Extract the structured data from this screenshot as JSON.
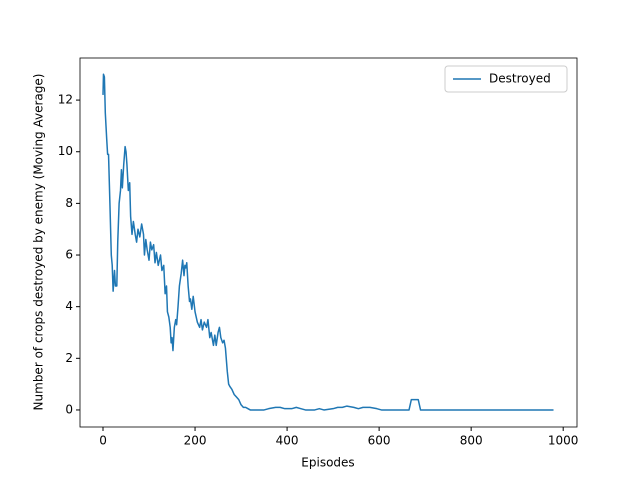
{
  "chart_data": {
    "type": "line",
    "xlabel": "Episodes",
    "ylabel": "Number of crops destroyed by enemy (Moving Average)",
    "x": [
      0,
      1,
      3,
      4,
      5,
      8,
      10,
      12,
      15,
      18,
      20,
      22,
      25,
      27,
      30,
      32,
      35,
      38,
      40,
      42,
      45,
      48,
      50,
      52,
      55,
      58,
      60,
      63,
      66,
      70,
      73,
      76,
      80,
      84,
      88,
      90,
      93,
      96,
      100,
      103,
      106,
      110,
      113,
      116,
      120,
      125,
      128,
      132,
      135,
      138,
      140,
      143,
      146,
      148,
      150,
      152,
      155,
      158,
      160,
      163,
      166,
      170,
      173,
      176,
      178,
      180,
      182,
      185,
      188,
      190,
      193,
      196,
      200,
      205,
      210,
      213,
      216,
      220,
      225,
      228,
      232,
      235,
      240,
      243,
      246,
      250,
      253,
      256,
      260,
      263,
      266,
      270,
      273,
      276,
      280,
      285,
      290,
      295,
      300,
      305,
      310,
      315,
      320,
      350,
      360,
      375,
      385,
      395,
      410,
      420,
      430,
      440,
      460,
      470,
      480,
      500,
      510,
      520,
      530,
      545,
      555,
      565,
      580,
      595,
      605,
      665,
      670,
      685,
      690,
      979
    ],
    "series": [
      {
        "name": "Destroyed",
        "color": "#1f77b4",
        "values": [
          12.2,
          13,
          12.9,
          12.2,
          11.5,
          10.5,
          9.9,
          9.9,
          8,
          6,
          5.6,
          4.6,
          5.4,
          4.8,
          4.8,
          6.5,
          8,
          8.5,
          9.3,
          8.6,
          9.5,
          10.2,
          10,
          9.5,
          8.5,
          8.8,
          7.5,
          6.8,
          7.3,
          6.8,
          6.5,
          7,
          6.7,
          7.2,
          6.8,
          6,
          6.6,
          6.2,
          5.8,
          6.5,
          6.2,
          6.4,
          5.7,
          6.1,
          5.6,
          6,
          5.4,
          5.6,
          4.5,
          4.8,
          3.8,
          3.6,
          3.2,
          2.6,
          2.8,
          2.3,
          3.2,
          3.5,
          3.3,
          4,
          4.8,
          5.3,
          5.8,
          5.2,
          5.6,
          5.5,
          5.7,
          4.8,
          4.2,
          4.3,
          3.9,
          4.4,
          3.8,
          3.4,
          3.2,
          3.5,
          3.1,
          3.4,
          3.2,
          3.5,
          2.8,
          3,
          2.5,
          2.9,
          2.5,
          3,
          3.2,
          2.8,
          2.6,
          2.7,
          2.4,
          1.5,
          1,
          0.9,
          0.8,
          0.6,
          0.5,
          0.4,
          0.2,
          0.1,
          0.1,
          0.05,
          0,
          0,
          0.05,
          0.1,
          0.1,
          0.05,
          0.05,
          0.1,
          0.05,
          0,
          0,
          0.05,
          0,
          0.05,
          0.1,
          0.1,
          0.15,
          0.1,
          0.05,
          0.1,
          0.1,
          0.05,
          0,
          0,
          0.4,
          0.4,
          0,
          0
        ]
      }
    ],
    "xlim": [
      -50,
      1030
    ],
    "ylim": [
      -0.66,
      13.63
    ],
    "xticks": [
      0,
      200,
      400,
      600,
      800,
      1000
    ],
    "yticks": [
      0,
      2,
      4,
      6,
      8,
      10,
      12
    ],
    "grid": false,
    "legend": "upper right"
  }
}
